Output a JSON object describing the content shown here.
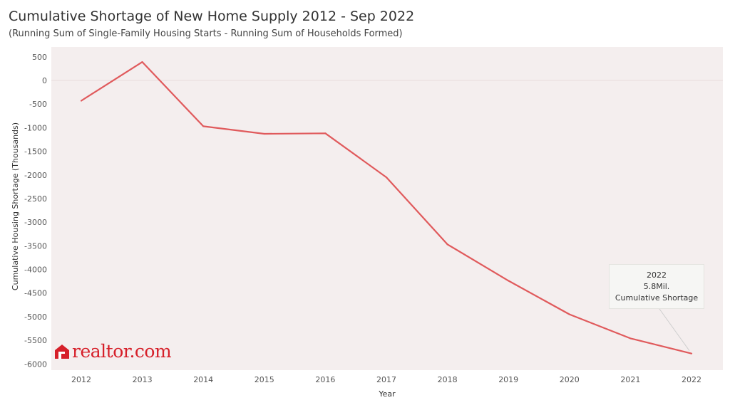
{
  "colors": {
    "line": "#e05a5c",
    "plot_background": "#f4eeee",
    "brand": "#d6202a"
  },
  "logo": {
    "text": "realtor.com"
  },
  "tooltip": {
    "year": "2022",
    "value": "5.8Mil.",
    "label": "Cumulative Shortage"
  },
  "chart_data": {
    "type": "line",
    "title": "Cumulative Shortage of New Home Supply 2012 - Sep 2022",
    "subtitle": "(Running Sum of Single-Family Housing Starts - Running Sum of Households Formed)",
    "xlabel": "Year",
    "ylabel": "Cumulative Housing Shortage (Thousands)",
    "x": [
      "2012",
      "2013",
      "2014",
      "2015",
      "2016",
      "2017",
      "2018",
      "2019",
      "2020",
      "2021",
      "2022"
    ],
    "series": [
      {
        "values": [
          -430,
          390,
          -970,
          -1130,
          -1120,
          -2050,
          -3470,
          -4240,
          -4950,
          -5460,
          -5780
        ]
      }
    ],
    "yticks": [
      500,
      0,
      -500,
      -1000,
      -1500,
      -2000,
      -2500,
      -3000,
      -3500,
      -4000,
      -4500,
      -5000,
      -5500,
      -6000
    ],
    "ylim": [
      -6000,
      500
    ],
    "grid": "zero-line only",
    "legend": "none"
  }
}
